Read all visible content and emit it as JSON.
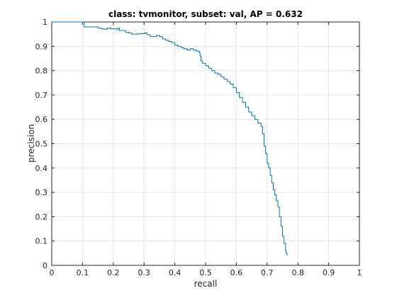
{
  "chart_data": {
    "type": "line",
    "title": "class: tvmonitor, subset: val, AP = 0.632",
    "xlabel": "recall",
    "ylabel": "precision",
    "xlim": [
      0,
      1
    ],
    "ylim": [
      0,
      1
    ],
    "xticks": [
      0,
      0.1,
      0.2,
      0.3,
      0.4,
      0.5,
      0.6,
      0.7,
      0.8,
      0.9,
      1
    ],
    "xtick_labels": [
      "0",
      "0.1",
      "0.2",
      "0.3",
      "0.4",
      "0.5",
      "0.6",
      "0.7",
      "0.8",
      "0.9",
      "1"
    ],
    "yticks": [
      0,
      0.1,
      0.2,
      0.3,
      0.4,
      0.5,
      0.6,
      0.7,
      0.8,
      0.9,
      1
    ],
    "ytick_labels": [
      "0",
      "0.1",
      "0.2",
      "0.3",
      "0.4",
      "0.5",
      "0.6",
      "0.7",
      "0.8",
      "0.9",
      "1"
    ],
    "grid": true,
    "line_color": "#0072BD",
    "step": true,
    "series": [
      {
        "x": [
          0.0,
          0.105,
          0.105,
          0.13,
          0.15,
          0.16,
          0.17,
          0.18,
          0.19,
          0.21,
          0.215,
          0.22,
          0.24,
          0.25,
          0.26,
          0.28,
          0.3,
          0.31,
          0.32,
          0.34,
          0.35,
          0.36,
          0.37,
          0.38,
          0.39,
          0.4,
          0.41,
          0.42,
          0.43,
          0.44,
          0.45,
          0.46,
          0.47,
          0.48,
          0.482,
          0.485,
          0.49,
          0.5,
          0.51,
          0.52,
          0.53,
          0.54,
          0.55,
          0.56,
          0.57,
          0.58,
          0.59,
          0.6,
          0.61,
          0.62,
          0.63,
          0.64,
          0.65,
          0.66,
          0.67,
          0.68,
          0.685,
          0.69,
          0.695,
          0.7,
          0.705,
          0.71,
          0.715,
          0.72,
          0.725,
          0.73,
          0.735,
          0.74,
          0.745,
          0.75,
          0.755,
          0.76,
          0.762,
          0.765
        ],
        "y": [
          1.0,
          1.0,
          0.98,
          0.98,
          0.975,
          0.972,
          0.97,
          0.975,
          0.972,
          0.97,
          0.975,
          0.965,
          0.958,
          0.955,
          0.95,
          0.952,
          0.955,
          0.948,
          0.94,
          0.945,
          0.94,
          0.93,
          0.925,
          0.92,
          0.915,
          0.905,
          0.9,
          0.895,
          0.89,
          0.885,
          0.89,
          0.885,
          0.88,
          0.875,
          0.86,
          0.84,
          0.83,
          0.82,
          0.81,
          0.8,
          0.79,
          0.785,
          0.775,
          0.765,
          0.755,
          0.745,
          0.73,
          0.71,
          0.69,
          0.67,
          0.65,
          0.63,
          0.615,
          0.6,
          0.585,
          0.57,
          0.54,
          0.49,
          0.46,
          0.42,
          0.4,
          0.37,
          0.34,
          0.31,
          0.29,
          0.265,
          0.24,
          0.2,
          0.16,
          0.12,
          0.09,
          0.06,
          0.05,
          0.04
        ]
      }
    ]
  }
}
